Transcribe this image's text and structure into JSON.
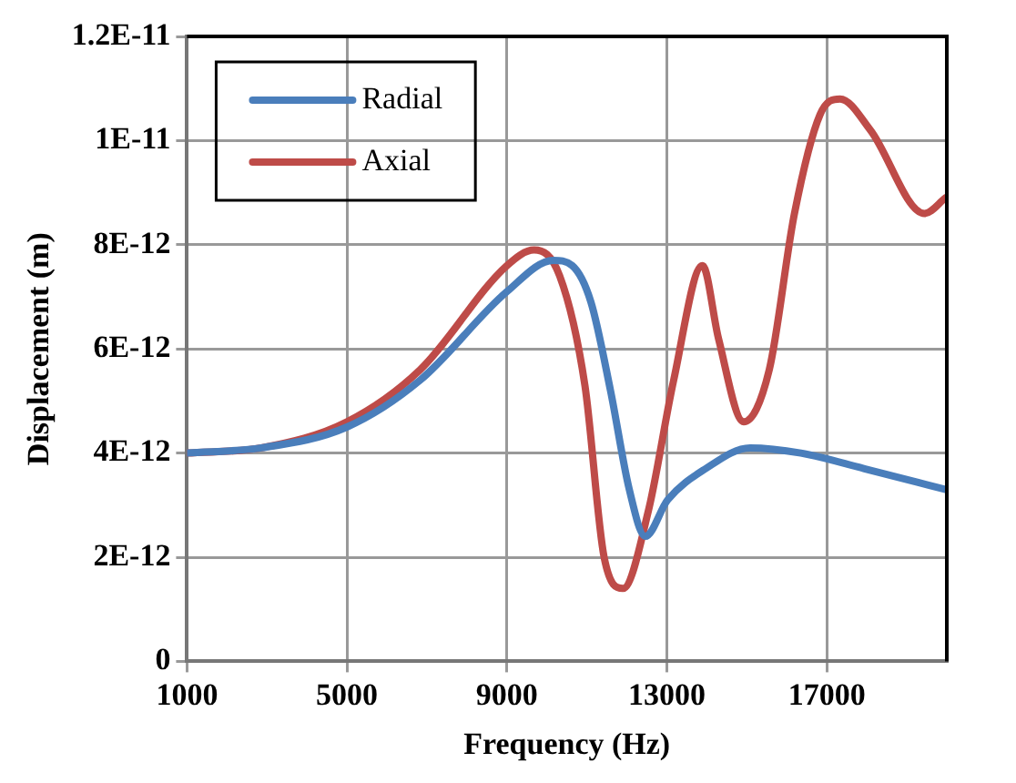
{
  "chart_data": {
    "type": "line",
    "xlabel": "Frequency (Hz)",
    "ylabel": "Displacement (m)",
    "x": [
      1000,
      2860,
      5000,
      6830,
      9000,
      10160,
      10630,
      11100,
      11590,
      12060,
      12460,
      13020,
      13970,
      15080,
      16350,
      17940,
      19970
    ],
    "series": [
      {
        "name": "Radial",
        "color": "#4a7ebb",
        "values": [
          4e-12,
          4.1e-12,
          4.5e-12,
          5.4e-12,
          7.1e-12,
          7.7e-12,
          7.6e-12,
          6.9e-12,
          5.2e-12,
          3.3e-12,
          2.4e-12,
          3.1e-12,
          3.7e-12,
          4.1e-12,
          4e-12,
          3.7e-12,
          3.3e-12
        ]
      },
      {
        "name": "Axial",
        "color": "#be4b48",
        "x": [
          1000,
          2860,
          5000,
          6830,
          9000,
          9680,
          10320,
          10950,
          11430,
          11900,
          12540,
          13170,
          13890,
          14290,
          14920,
          15560,
          16190,
          16830,
          17330,
          18090,
          19440,
          19970
        ],
        "values": [
          4e-12,
          4.1e-12,
          4.6e-12,
          5.6e-12,
          7.6e-12,
          7.9e-12,
          7.4e-12,
          5.3e-12,
          2e-12,
          1.4e-12,
          2.9e-12,
          5.4e-12,
          7.6e-12,
          6.2e-12,
          4.6e-12,
          5.6e-12,
          8.6e-12,
          1.05e-11,
          1.08e-11,
          1.02e-11,
          8.6e-12,
          8.9e-12
        ]
      }
    ],
    "xlim": [
      1000,
      20000
    ],
    "xticks": [
      1000,
      5000,
      9000,
      13000,
      17000
    ],
    "ylim": [
      0,
      1.2e-11
    ],
    "yticks": [
      0,
      {
        "value": 2e-12,
        "label": "2E-12"
      },
      {
        "value": 4e-12,
        "label": "4E-12"
      },
      {
        "value": 6e-12,
        "label": "6E-12"
      },
      {
        "value": 8e-12,
        "label": "8E-12"
      },
      {
        "value": 1e-11,
        "label": "1E-11"
      },
      {
        "value": 1.2e-11,
        "label": "1.2E-11"
      }
    ],
    "grid": true,
    "legend": "top left",
    "marker": "none",
    "line_style": "solid"
  }
}
